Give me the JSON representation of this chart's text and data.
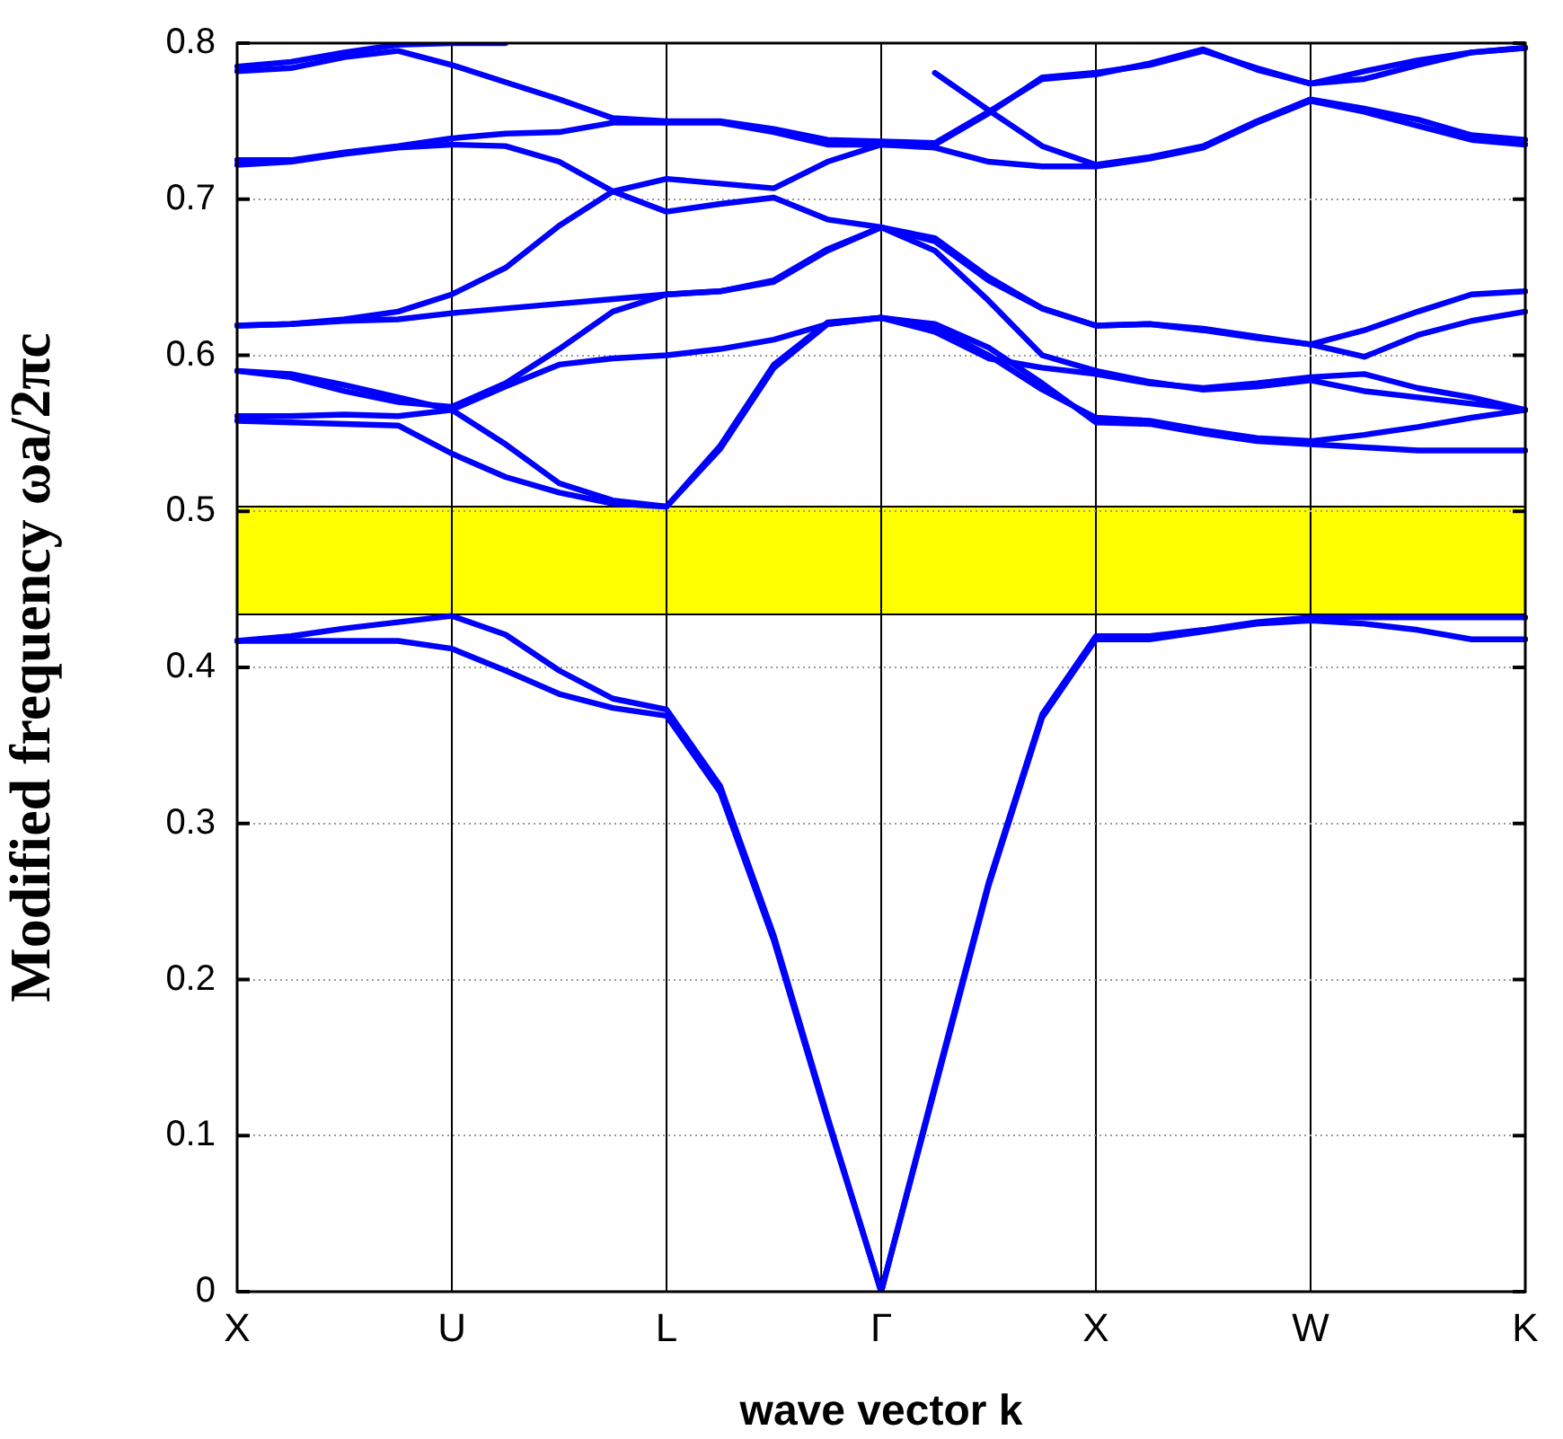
{
  "chart_data": {
    "type": "line",
    "xlabel": "wave vector k",
    "ylabel": "Modified frequency ωa/2πc",
    "categories": [
      "X",
      null,
      null,
      null,
      "U",
      null,
      null,
      null,
      "L",
      null,
      null,
      null,
      "Γ",
      null,
      null,
      null,
      "X",
      null,
      null,
      null,
      "W",
      null,
      null,
      null,
      "K"
    ],
    "ylim": [
      0,
      0.8
    ],
    "yticks": [
      0,
      0.1,
      0.2,
      0.3,
      0.4,
      0.5,
      0.6,
      0.7,
      0.8
    ],
    "grid": true,
    "legend": false,
    "marker": "none",
    "line_style": "solid",
    "bands": [
      {
        "axis": "y",
        "from": 0.434,
        "to": 0.503,
        "color": "#ffff00"
      }
    ],
    "series": [
      {
        "color": "#0000ff",
        "values": [
          0.417,
          0.417,
          0.417,
          0.417,
          0.412,
          0.398,
          0.383,
          0.374,
          0.369,
          0.32,
          0.225,
          0.11,
          0,
          0.13,
          0.26,
          0.368,
          0.418,
          0.418,
          0.423,
          0.428,
          0.43,
          0.428,
          0.424,
          0.418,
          0.418
        ]
      },
      {
        "color": "#0000ff",
        "values": [
          0.417,
          0.42,
          0.425,
          0.429,
          0.433,
          0.421,
          0.398,
          0.38,
          0.373,
          0.324,
          0.228,
          0.112,
          0,
          0.132,
          0.262,
          0.37,
          0.42,
          0.42,
          0.424,
          0.429,
          0.432,
          0.432,
          0.432,
          0.432,
          0.432
        ]
      },
      {
        "color": "#0000ff",
        "values": [
          0.558,
          0.557,
          0.556,
          0.555,
          0.537,
          0.522,
          0.512,
          0.505,
          0.503,
          0.54,
          0.592,
          0.62,
          0.624,
          0.62,
          0.605,
          0.582,
          0.557,
          0.556,
          0.55,
          0.545,
          0.543,
          0.541,
          0.539,
          0.539,
          0.539
        ]
      },
      {
        "color": "#0000ff",
        "values": [
          0.561,
          0.561,
          0.562,
          0.561,
          0.565,
          0.543,
          0.518,
          0.507,
          0.503,
          0.542,
          0.594,
          0.621,
          0.624,
          0.618,
          0.6,
          0.578,
          0.56,
          0.558,
          0.552,
          0.547,
          0.545,
          0.549,
          0.554,
          0.56,
          0.565
        ]
      },
      {
        "color": "#0000ff",
        "values": [
          0.59,
          0.586,
          0.577,
          0.57,
          0.567,
          0.582,
          0.604,
          0.628,
          0.639,
          0.641,
          0.648,
          0.668,
          0.682,
          0.673,
          0.648,
          0.63,
          0.619,
          0.62,
          0.616,
          0.611,
          0.607,
          0.616,
          0.628,
          0.639,
          0.641
        ]
      },
      {
        "color": "#0000ff",
        "values": [
          0.59,
          0.588,
          0.581,
          0.573,
          0.565,
          0.58,
          0.594,
          0.598,
          0.6,
          0.604,
          0.61,
          0.62,
          0.624,
          0.615,
          0.598,
          0.592,
          0.588,
          0.582,
          0.579,
          0.582,
          0.586,
          0.588,
          0.579,
          0.573,
          0.565
        ]
      },
      {
        "color": "#0000ff",
        "values": [
          0.619,
          0.62,
          0.622,
          0.623,
          0.627,
          0.63,
          0.633,
          0.636,
          0.639,
          0.641,
          0.647,
          0.667,
          0.682,
          0.667,
          0.635,
          0.6,
          0.59,
          0.583,
          0.578,
          0.58,
          0.584,
          0.577,
          0.573,
          0.569,
          0.565
        ]
      },
      {
        "color": "#0000ff",
        "values": [
          0.619,
          0.62,
          0.623,
          0.628,
          0.639,
          0.656,
          0.683,
          0.705,
          0.713,
          0.71,
          0.707,
          0.724,
          0.735,
          0.735,
          0.755,
          0.778,
          0.781,
          0.786,
          0.795,
          0.784,
          0.774,
          0.777,
          0.786,
          0.794,
          0.797
        ]
      },
      {
        "color": "#0000ff",
        "values": [
          0.722,
          0.724,
          0.729,
          0.733,
          0.735,
          0.734,
          0.724,
          0.705,
          0.692,
          0.697,
          0.701,
          0.687,
          0.682,
          0.675,
          0.65,
          0.63,
          0.619,
          0.62,
          0.617,
          0.612,
          0.607,
          0.599,
          0.613,
          0.622,
          0.628
        ]
      },
      {
        "color": "#0000ff",
        "values": [
          0.725,
          0.725,
          0.73,
          0.734,
          0.739,
          0.742,
          0.743,
          0.749,
          0.749,
          0.749,
          0.743,
          0.735,
          0.735,
          0.733,
          0.724,
          0.721,
          0.721,
          0.726,
          0.733,
          0.749,
          0.763,
          0.756,
          0.747,
          0.738,
          0.735
        ]
      },
      {
        "color": "#0000ff",
        "values": [
          0.782,
          0.784,
          0.791,
          0.795,
          0.786,
          0.775,
          0.764,
          0.752,
          0.75,
          0.75,
          0.745,
          0.738,
          0.737,
          0.736,
          0.756,
          0.777,
          0.78,
          0.787,
          0.796,
          0.783,
          0.774,
          0.782,
          0.789,
          0.794,
          0.797
        ]
      },
      {
        "color": "#0000ff",
        "values": [
          0.785,
          0.788,
          0.794,
          0.799,
          0.8,
          0.8,
          null,
          null,
          null,
          null,
          null,
          null,
          null,
          null,
          null,
          null,
          null,
          null,
          null,
          null,
          null,
          null,
          null,
          null,
          null
        ]
      },
      {
        "color": "#0000ff",
        "values": [
          null,
          null,
          null,
          null,
          null,
          null,
          null,
          null,
          null,
          null,
          null,
          null,
          null,
          0.781,
          0.757,
          0.734,
          0.722,
          0.727,
          0.734,
          0.75,
          0.764,
          0.758,
          0.751,
          0.741,
          0.738
        ]
      }
    ]
  }
}
